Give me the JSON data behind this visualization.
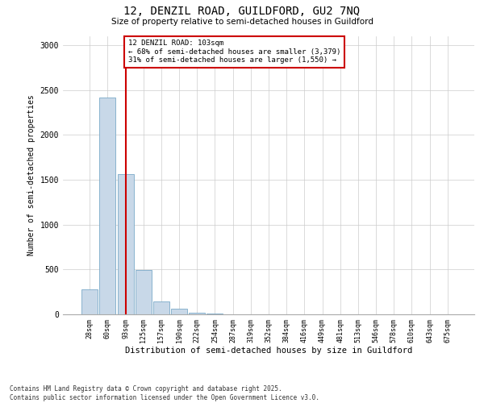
{
  "title_line1": "12, DENZIL ROAD, GUILDFORD, GU2 7NQ",
  "title_line2": "Size of property relative to semi-detached houses in Guildford",
  "xlabel": "Distribution of semi-detached houses by size in Guildford",
  "ylabel": "Number of semi-detached properties",
  "annotation_title": "12 DENZIL ROAD: 103sqm",
  "annotation_line2": "← 68% of semi-detached houses are smaller (3,379)",
  "annotation_line3": "31% of semi-detached houses are larger (1,550) →",
  "bin_labels": [
    "28sqm",
    "60sqm",
    "93sqm",
    "125sqm",
    "157sqm",
    "190sqm",
    "222sqm",
    "254sqm",
    "287sqm",
    "319sqm",
    "352sqm",
    "384sqm",
    "416sqm",
    "449sqm",
    "481sqm",
    "513sqm",
    "546sqm",
    "578sqm",
    "610sqm",
    "643sqm",
    "675sqm"
  ],
  "bar_values": [
    280,
    2420,
    1560,
    490,
    140,
    60,
    20,
    10,
    3,
    0,
    0,
    0,
    0,
    0,
    0,
    0,
    0,
    0,
    0,
    0,
    0
  ],
  "bar_color": "#c8d8e8",
  "bar_edge_color": "#7aaac8",
  "red_line_color": "#cc0000",
  "annotation_box_color": "#cc0000",
  "background_color": "#ffffff",
  "grid_color": "#cccccc",
  "ylim": [
    0,
    3100
  ],
  "yticks": [
    0,
    500,
    1000,
    1500,
    2000,
    2500,
    3000
  ],
  "footer_line1": "Contains HM Land Registry data © Crown copyright and database right 2025.",
  "footer_line2": "Contains public sector information licensed under the Open Government Licence v3.0."
}
